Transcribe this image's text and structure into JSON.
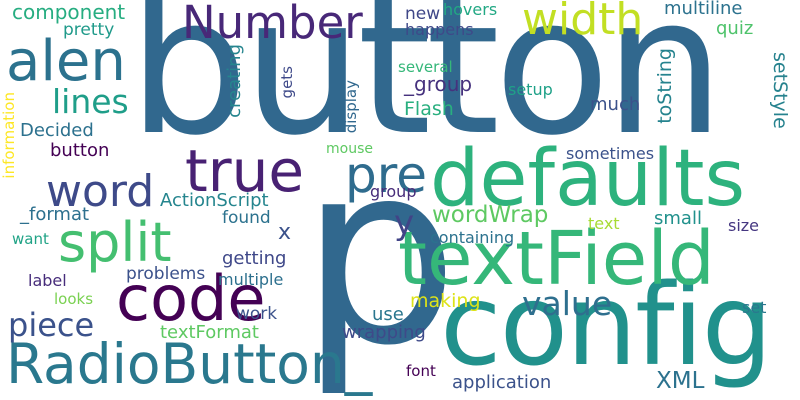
{
  "words": [
    {
      "text": "button",
      "color": "#31688e"
    },
    {
      "text": "config",
      "color": "#21918c"
    },
    {
      "text": "p",
      "color": "#31688e"
    },
    {
      "text": "defaults",
      "color": "#2db27d"
    },
    {
      "text": "textField",
      "color": "#35b779"
    },
    {
      "text": "RadioButton_",
      "color": "#2a788e"
    },
    {
      "text": "code",
      "color": "#440154"
    },
    {
      "text": "width",
      "color": "#c2df23"
    },
    {
      "text": "alen",
      "color": "#2c728e"
    },
    {
      "text": "Number",
      "color": "#482878"
    },
    {
      "text": "true",
      "color": "#482173"
    },
    {
      "text": "word",
      "color": "#3e4a89"
    },
    {
      "text": "split",
      "color": "#44bf70"
    },
    {
      "text": "pre",
      "color": "#2f6c8e"
    },
    {
      "text": "piece",
      "color": "#3b528b"
    },
    {
      "text": "value",
      "color": "#2e6f8e"
    },
    {
      "text": "lines",
      "color": "#1f9e89"
    },
    {
      "text": "component",
      "color": "#27ad81"
    },
    {
      "text": "pretty",
      "color": "#1f9a8a"
    },
    {
      "text": "new",
      "color": "#3f4788"
    },
    {
      "text": "hovers",
      "color": "#22a884"
    },
    {
      "text": "happens",
      "color": "#3e4989"
    },
    {
      "text": "multiline",
      "color": "#2c728e"
    },
    {
      "text": "quiz",
      "color": "#4ec36b"
    },
    {
      "text": "several",
      "color": "#35b779"
    },
    {
      "text": "setStyle",
      "color": "#26828e"
    },
    {
      "text": "_group",
      "color": "#46327e"
    },
    {
      "text": "setup",
      "color": "#1fa188"
    },
    {
      "text": "Flash",
      "color": "#29af7f"
    },
    {
      "text": "much",
      "color": "#3b528b"
    },
    {
      "text": "Decided",
      "color": "#2c718e"
    },
    {
      "text": "button",
      "color": "#440154"
    },
    {
      "text": "information",
      "color": "#fde725"
    },
    {
      "text": "creating",
      "color": "#25858e"
    },
    {
      "text": "gets",
      "color": "#3e4989"
    },
    {
      "text": "display",
      "color": "#31688e"
    },
    {
      "text": "toString",
      "color": "#25838e"
    },
    {
      "text": "mouse",
      "color": "#5ec962"
    },
    {
      "text": "sometimes",
      "color": "#3b528b"
    },
    {
      "text": "group",
      "color": "#472c7a"
    },
    {
      "text": "ActionScript",
      "color": "#25858e"
    },
    {
      "text": "_format",
      "color": "#2d708e"
    },
    {
      "text": "found",
      "color": "#2c728e"
    },
    {
      "text": "wordWrap",
      "color": "#5ec962"
    },
    {
      "text": "small",
      "color": "#21918c"
    },
    {
      "text": "text",
      "color": "#a8db34"
    },
    {
      "text": "size",
      "color": "#453781"
    },
    {
      "text": "want",
      "color": "#20a386"
    },
    {
      "text": "x",
      "color": "#3b528b"
    },
    {
      "text": "y",
      "color": "#414487"
    },
    {
      "text": "containing",
      "color": "#2c728e"
    },
    {
      "text": "getting",
      "color": "#3f4889"
    },
    {
      "text": "label",
      "color": "#472d7b"
    },
    {
      "text": "problems",
      "color": "#3b518b"
    },
    {
      "text": "multiple",
      "color": "#2d708e"
    },
    {
      "text": "looks",
      "color": "#7ad151"
    },
    {
      "text": "making",
      "color": "#dde318"
    },
    {
      "text": "use",
      "color": "#2a768e"
    },
    {
      "text": "work",
      "color": "#3b528b"
    },
    {
      "text": "textFormat",
      "color": "#5ec962"
    },
    {
      "text": "wrapping",
      "color": "#3e4a89"
    },
    {
      "text": "set",
      "color": "#2a788e"
    },
    {
      "text": "font",
      "color": "#440154"
    },
    {
      "text": "application",
      "color": "#3b528b"
    },
    {
      "text": "XML",
      "color": "#2c728e"
    }
  ]
}
